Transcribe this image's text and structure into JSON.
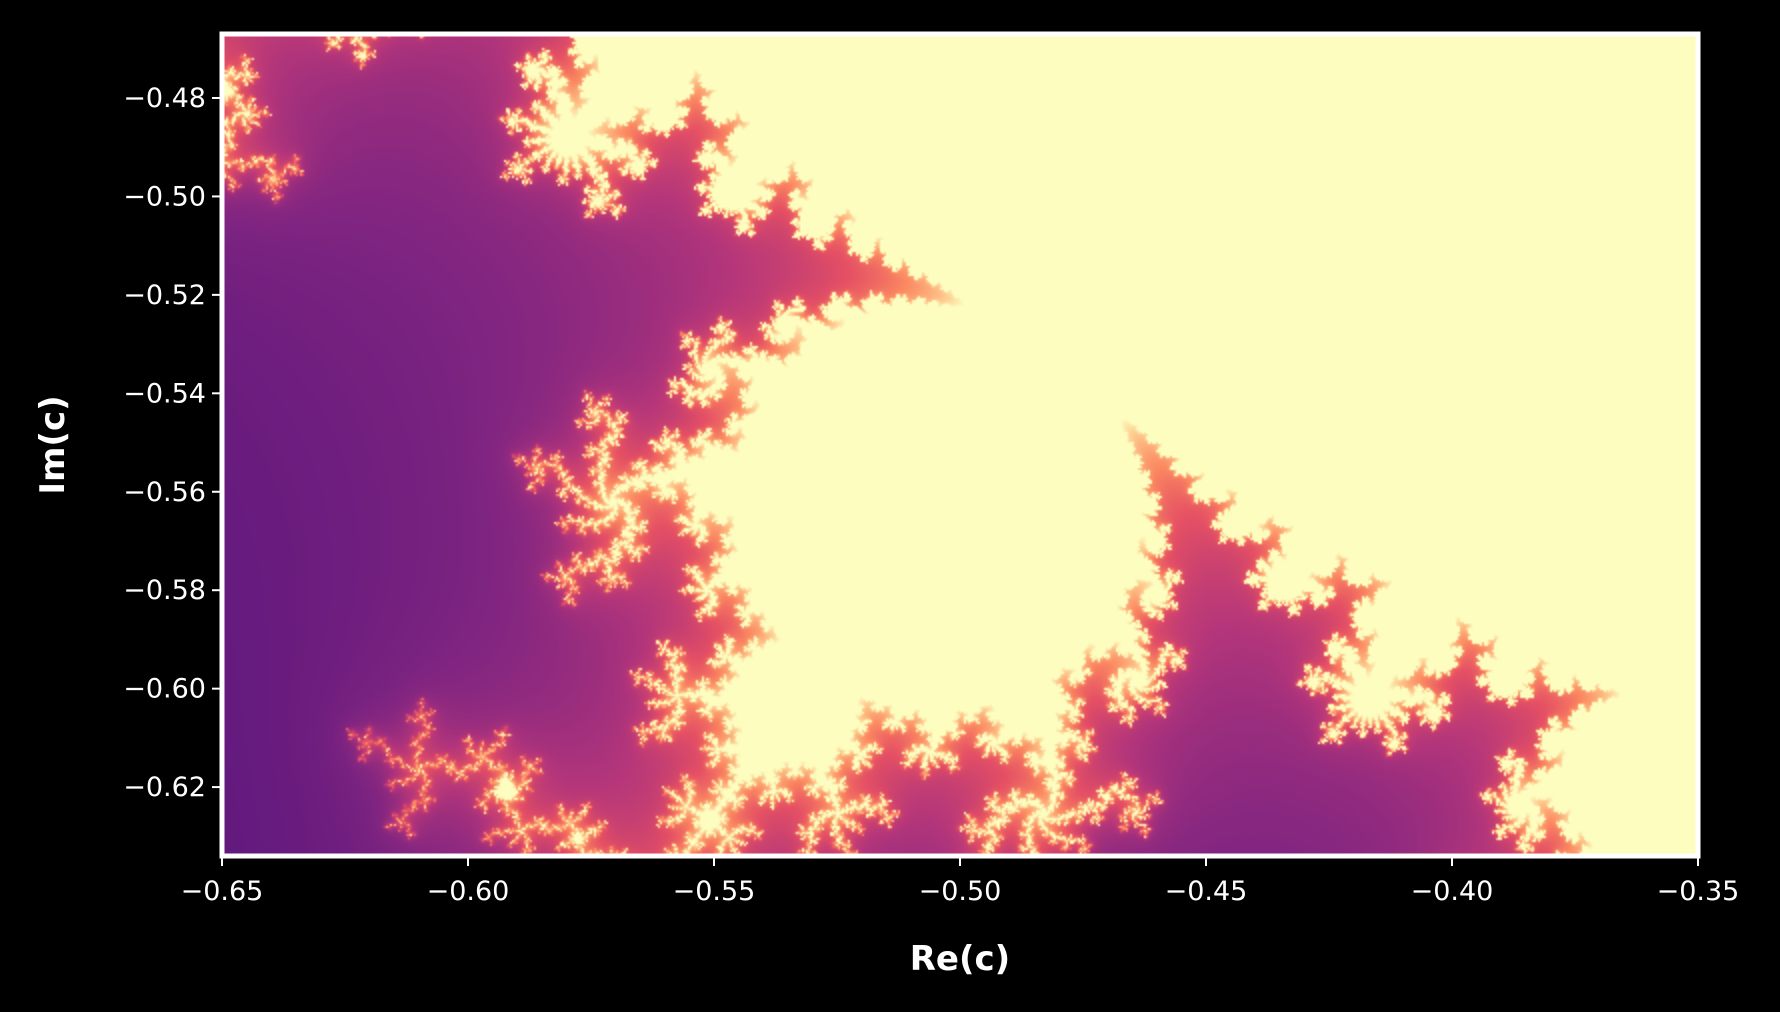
{
  "chart_data": {
    "type": "heatmap",
    "description_kind": "mandelbrot-escape-time",
    "xlabel": "Re(c)",
    "ylabel": "Im(c)",
    "xlim": [
      -0.65,
      -0.35
    ],
    "ylim": [
      -0.634,
      -0.467
    ],
    "y_inverted": true,
    "x_ticks": [
      {
        "value": -0.65,
        "label": "−0.65"
      },
      {
        "value": -0.6,
        "label": "−0.60"
      },
      {
        "value": -0.55,
        "label": "−0.55"
      },
      {
        "value": -0.5,
        "label": "−0.50"
      },
      {
        "value": -0.45,
        "label": "−0.45"
      },
      {
        "value": -0.4,
        "label": "−0.40"
      },
      {
        "value": -0.35,
        "label": "−0.35"
      }
    ],
    "y_ticks": [
      {
        "value": -0.48,
        "label": "−0.48"
      },
      {
        "value": -0.5,
        "label": "−0.50"
      },
      {
        "value": -0.52,
        "label": "−0.52"
      },
      {
        "value": -0.54,
        "label": "−0.54"
      },
      {
        "value": -0.56,
        "label": "−0.56"
      },
      {
        "value": -0.58,
        "label": "−0.58"
      },
      {
        "value": -0.6,
        "label": "−0.60"
      },
      {
        "value": -0.62,
        "label": "−0.62"
      }
    ],
    "colormap": "magma",
    "interior_color": "#fcfdbf",
    "frame_color": "#ffffff",
    "background_color": "#000000",
    "grid": false,
    "max_iterations": 200
  }
}
